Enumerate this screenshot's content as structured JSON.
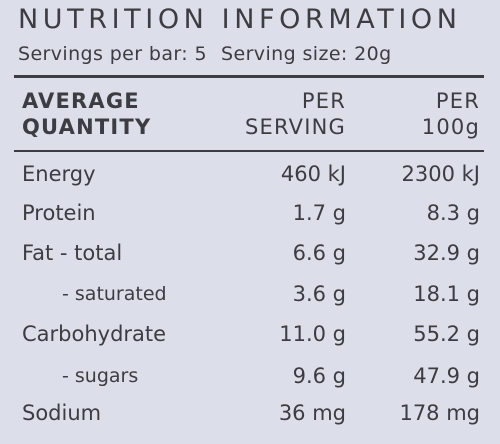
{
  "panel": {
    "title": "NUTRITION INFORMATION",
    "servings_per_bar": "Servings per bar: 5",
    "serving_size": "Serving size: 20g"
  },
  "table": {
    "headers": {
      "quantity_line1": "AVERAGE",
      "quantity_line2": "QUANTITY",
      "serving_line1": "PER",
      "serving_line2": "SERVING",
      "per100_line1": "PER",
      "per100_line2": "100g"
    },
    "rows": [
      {
        "label": "Energy",
        "per_serving": "460 kJ",
        "per_100g": "2300 kJ"
      },
      {
        "label": "Protein",
        "per_serving": "1.7 g",
        "per_100g": "8.3 g"
      },
      {
        "label": "Fat - total",
        "per_serving": "6.6 g",
        "per_100g": "32.9 g"
      },
      {
        "label": "- saturated",
        "per_serving": "3.6 g",
        "per_100g": "18.1 g"
      },
      {
        "label": "Carbohydrate",
        "per_serving": "11.0 g",
        "per_100g": "55.2 g"
      },
      {
        "label": "- sugars",
        "per_serving": "9.6 g",
        "per_100g": "47.9 g"
      },
      {
        "label": "Sodium",
        "per_serving": "36 mg",
        "per_100g": "178 mg"
      }
    ]
  },
  "colors": {
    "background": "#dcdfe9",
    "text": "#3c3c42"
  }
}
